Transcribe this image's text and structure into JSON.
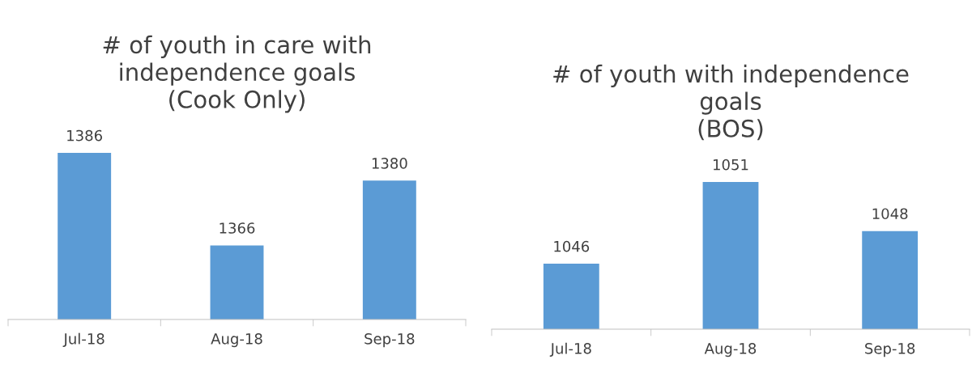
{
  "chart_data": [
    {
      "type": "bar",
      "title": "# of youth in care with\nindependence goals\n(Cook Only)",
      "categories": [
        "Jul-18",
        "Aug-18",
        "Sep-18"
      ],
      "values": [
        1386,
        1366,
        1380
      ],
      "color": "#5b9bd5",
      "ylim": [
        1350,
        1386
      ],
      "data_labels": true,
      "tick_labels": "x",
      "grid": false,
      "legend": false
    },
    {
      "type": "bar",
      "title": "# of youth with independence\ngoals\n(BOS)",
      "categories": [
        "Jul-18",
        "Aug-18",
        "Sep-18"
      ],
      "values": [
        1046,
        1051,
        1048
      ],
      "color": "#5b9bd5",
      "ylim": [
        1042,
        1051
      ],
      "data_labels": true,
      "tick_labels": "x",
      "grid": false,
      "legend": false
    }
  ]
}
